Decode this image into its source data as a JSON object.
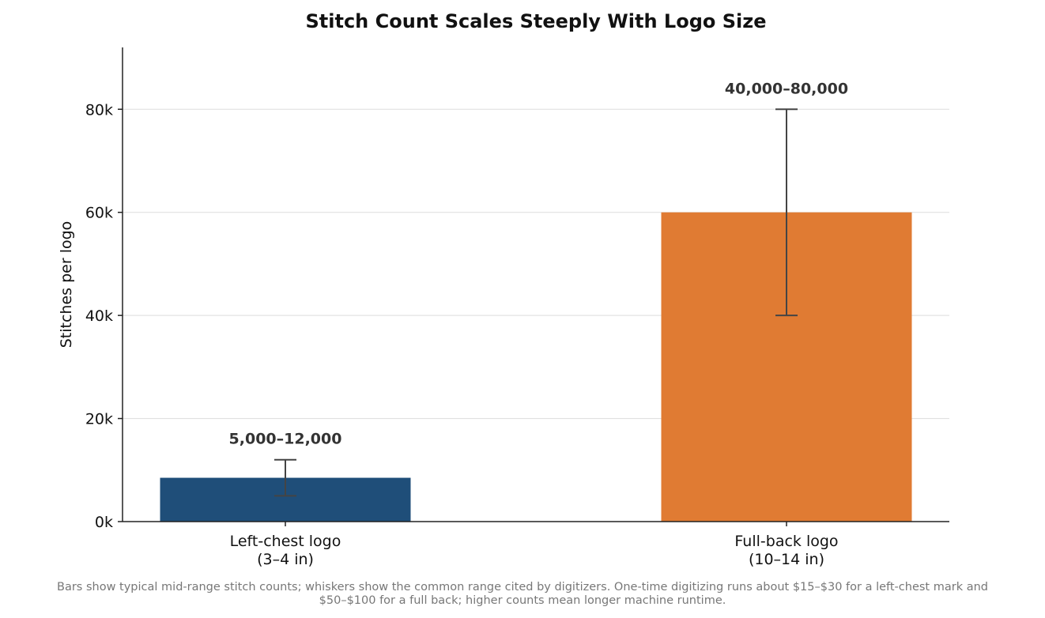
{
  "chart_data": {
    "type": "bar",
    "title": "Stitch Count Scales Steeply With Logo Size",
    "ylabel": "Stitches per logo",
    "xlabel": "",
    "ylim": [
      0,
      92000
    ],
    "yticks": [
      0,
      20000,
      40000,
      60000,
      80000
    ],
    "ytick_labels": [
      "0k",
      "20k",
      "40k",
      "60k",
      "80k"
    ],
    "grid": "horizontal",
    "categories": [
      {
        "line1": "Left-chest logo",
        "line2": "(3–4 in)"
      },
      {
        "line1": "Full-back logo",
        "line2": "(10–14 in)"
      }
    ],
    "values": [
      8500,
      60000
    ],
    "error_low": [
      5000,
      40000
    ],
    "error_high": [
      12000,
      80000
    ],
    "data_labels": [
      "5,000–12,000",
      "40,000–80,000"
    ],
    "colors": [
      "#1f4e79",
      "#e07b33"
    ],
    "footnote_lines": [
      "Bars show typical mid-range stitch counts; whiskers show the common range cited by digitizers. One-time digitizing runs about $15–$30 for a left-chest mark and",
      "$50–$100 for a full back; higher counts mean longer machine runtime."
    ]
  }
}
